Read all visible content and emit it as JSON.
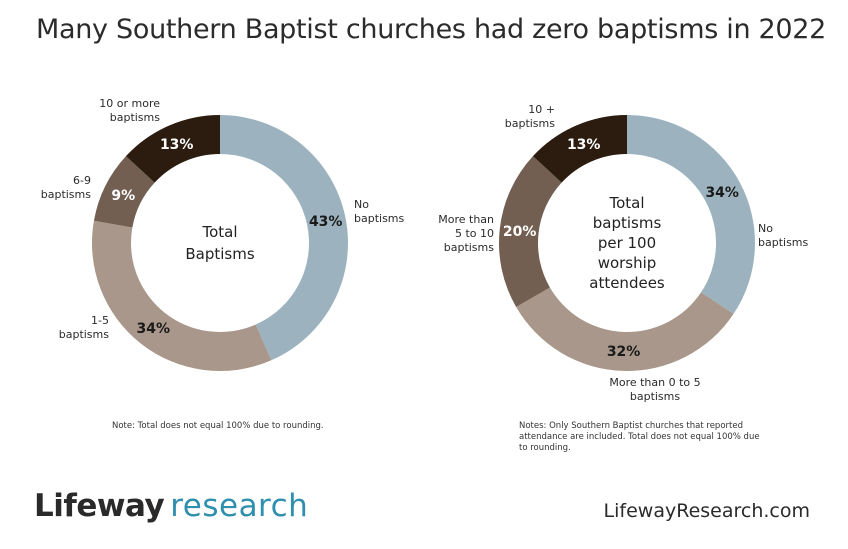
{
  "title": "Many Southern Baptist churches had zero baptisms in 2022",
  "chart_data": [
    {
      "type": "pie",
      "center_label": [
        "Total",
        "Baptisms"
      ],
      "categories": [
        "No baptisms",
        "1-5 baptisms",
        "6-9 baptisms",
        "10 or more baptisms"
      ],
      "values": [
        43,
        34,
        9,
        13
      ],
      "value_labels": [
        "43%",
        "34%",
        "9%",
        "13%"
      ],
      "category_labels": [
        [
          "No",
          "baptisms"
        ],
        [
          "1-5",
          "baptisms"
        ],
        [
          "6-9",
          "baptisms"
        ],
        [
          "10 or more",
          "baptisms"
        ]
      ],
      "colors": [
        "#9cb3bf",
        "#a8978a",
        "#735f51",
        "#2b1c0f"
      ],
      "note": "Note: Total does not equal 100% due to rounding."
    },
    {
      "type": "pie",
      "center_label": [
        "Total",
        "baptisms",
        "per 100",
        "worship",
        "attendees"
      ],
      "categories": [
        "No baptisms",
        "More than 0 to 5 baptisms",
        "More than 5 to 10 baptisms",
        "10 + baptisms"
      ],
      "values": [
        34,
        32,
        20,
        13
      ],
      "value_labels": [
        "34%",
        "32%",
        "20%",
        "13%"
      ],
      "category_labels": [
        [
          "No",
          "baptisms"
        ],
        [
          "More than 0 to 5",
          "baptisms"
        ],
        [
          "More than",
          "5 to 10",
          "baptisms"
        ],
        [
          "10 +",
          "baptisms"
        ]
      ],
      "colors": [
        "#9cb3bf",
        "#a8978a",
        "#735f51",
        "#2b1c0f"
      ],
      "note": "Notes: Only Southern Baptist churches that reported attendance are included. Total does not equal 100% due to rounding."
    }
  ],
  "footer": {
    "brand_part1": "Lifeway",
    "brand_part2": "research",
    "site": "LifewayResearch.com"
  }
}
